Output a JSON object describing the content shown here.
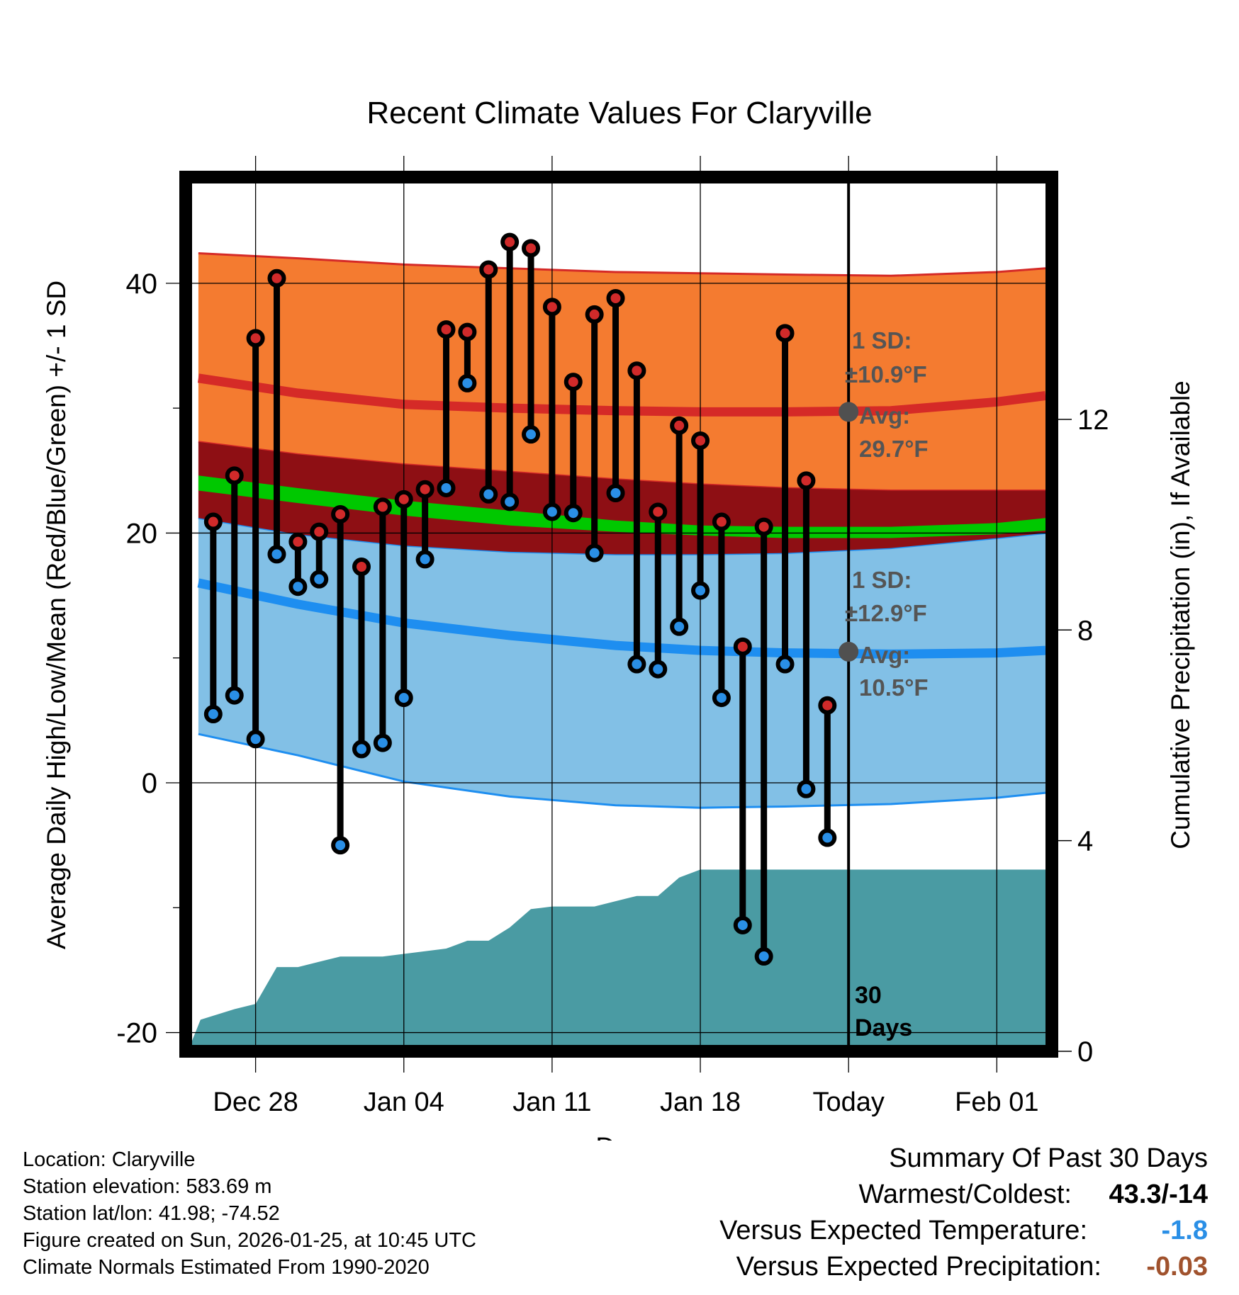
{
  "title": "Recent Climate Values For Claryville",
  "colors": {
    "high_band": "#f47b30",
    "high_line": "#d52a27",
    "mean_band": "#8e0f14",
    "mean_line": "#00c800",
    "low_band": "#82c0e6",
    "low_line": "#1e8ef0",
    "precip": "#4a9ba3",
    "high_dot": "#d02a2a",
    "low_dot": "#2a8fe6",
    "avg_marker": "#505050",
    "annot_text": "#555555",
    "summary_temp": "#2a8fe6",
    "summary_precip": "#a0522d"
  },
  "chart_data": {
    "type": "line",
    "xlabel": "Day",
    "ylabel": "Average Daily High/Low/Mean (Red/Blue/Green) +/- 1 SD",
    "y2label": "Cumulative Precipitation (in), If Available",
    "xlim": [
      -3.3,
      37.6
    ],
    "ylim": [
      -21.5,
      48.5
    ],
    "y_ticks": [
      -20,
      0,
      20,
      40
    ],
    "y_tick_labels": [
      "-20",
      "0",
      "20",
      "40"
    ],
    "y_minor_ticks": [
      -10,
      10,
      30
    ],
    "y2lim": [
      0,
      16.6
    ],
    "y2_ticks": [
      0,
      4,
      8,
      12
    ],
    "y2_tick_labels": [
      "0",
      "4",
      "8",
      "12"
    ],
    "x_ticks": [
      0,
      7,
      14,
      21,
      28,
      35
    ],
    "x_tick_labels": [
      "Dec 28",
      "Jan 04",
      "Jan 11",
      "Jan 18",
      "Today",
      "Feb 01"
    ],
    "today_index": 28,
    "normals": {
      "x": [
        -2.7,
        2,
        7,
        12,
        17,
        21,
        25,
        30,
        35,
        37.3
      ],
      "high_upper": [
        42.4,
        42.0,
        41.5,
        41.2,
        40.9,
        40.8,
        40.7,
        40.6,
        40.9,
        41.2
      ],
      "high_mean": [
        32.4,
        31.2,
        30.3,
        30.0,
        29.8,
        29.7,
        29.7,
        29.8,
        30.5,
        31.0
      ],
      "high_lower": [
        27.3,
        26.3,
        25.5,
        24.9,
        24.3,
        23.9,
        23.6,
        23.4,
        23.4,
        23.4
      ],
      "mean_upper": [
        24.6,
        23.6,
        22.6,
        21.8,
        21.0,
        20.6,
        20.5,
        20.5,
        20.8,
        21.2
      ],
      "mean_lower": [
        23.4,
        22.4,
        21.4,
        20.6,
        20.1,
        19.8,
        19.6,
        19.6,
        19.9,
        20.2
      ],
      "low_upper": [
        21.2,
        19.9,
        19.0,
        18.5,
        18.3,
        18.3,
        18.4,
        18.8,
        19.6,
        20.0
      ],
      "low_mean": [
        16.0,
        14.3,
        12.8,
        11.8,
        11.0,
        10.6,
        10.4,
        10.3,
        10.4,
        10.6
      ],
      "low_lower": [
        3.9,
        2.2,
        0.1,
        -1.1,
        -1.8,
        -2.0,
        -1.9,
        -1.7,
        -1.2,
        -0.8
      ]
    },
    "series": [
      {
        "name": "Daily High",
        "x": [
          -2,
          -1,
          0,
          1,
          2,
          3,
          4,
          5,
          6,
          7,
          8,
          9,
          10,
          11,
          12,
          13,
          14,
          15,
          16,
          17,
          18,
          19,
          20,
          21,
          22,
          23,
          24,
          25,
          26,
          27
        ],
        "values": [
          20.9,
          24.6,
          35.6,
          40.4,
          19.3,
          20.1,
          21.5,
          17.3,
          22.1,
          22.7,
          23.5,
          36.3,
          36.1,
          41.1,
          43.3,
          42.8,
          38.1,
          32.1,
          37.5,
          38.8,
          33.0,
          21.7,
          28.6,
          27.4,
          20.9,
          10.9,
          20.5,
          36.0,
          24.2,
          6.2
        ]
      },
      {
        "name": "Daily Low",
        "x": [
          -2,
          -1,
          0,
          1,
          2,
          3,
          4,
          5,
          6,
          7,
          8,
          9,
          10,
          11,
          12,
          13,
          14,
          15,
          16,
          17,
          18,
          19,
          20,
          21,
          22,
          23,
          24,
          25,
          26,
          27
        ],
        "values": [
          5.5,
          7.0,
          3.5,
          18.3,
          15.7,
          16.3,
          -5.0,
          2.7,
          3.2,
          6.8,
          17.9,
          23.6,
          32.0,
          23.1,
          22.5,
          27.9,
          21.7,
          21.6,
          18.4,
          23.2,
          9.5,
          9.1,
          12.5,
          15.4,
          6.8,
          -11.4,
          -13.9,
          9.5,
          -0.5,
          -4.4
        ]
      },
      {
        "name": "Cumulative Precipitation",
        "axis": "right",
        "x": [
          -3.2,
          -2.6,
          -1,
          0,
          1,
          2,
          3,
          4,
          5,
          6,
          7,
          8,
          9,
          10,
          11,
          12,
          13,
          14,
          15,
          16,
          17,
          18,
          19,
          20,
          21,
          22,
          23,
          24,
          25,
          26,
          27,
          28,
          29,
          30,
          31,
          32,
          33,
          34,
          35,
          36,
          37.3
        ],
        "values": [
          0.0,
          0.6,
          0.8,
          0.9,
          1.6,
          1.6,
          1.7,
          1.8,
          1.8,
          1.8,
          1.85,
          1.9,
          1.95,
          2.1,
          2.1,
          2.35,
          2.7,
          2.75,
          2.75,
          2.75,
          2.85,
          2.95,
          2.95,
          3.3,
          3.45,
          3.45,
          3.45,
          3.45,
          3.45,
          3.45,
          3.45,
          3.45,
          3.45,
          3.45,
          3.45,
          3.45,
          3.45,
          3.45,
          3.45,
          3.45,
          3.45
        ]
      }
    ],
    "annotations": {
      "high": {
        "sd_label": "1 SD:",
        "sd_value": "±10.9°F",
        "avg_label": "Avg:",
        "avg_value": "29.7°F",
        "marker_value": 29.7
      },
      "low": {
        "sd_label": "1 SD:",
        "sd_value": "±12.9°F",
        "avg_label": "Avg:",
        "avg_value": "10.5°F",
        "marker_value": 10.5
      },
      "period_number": "30",
      "period_unit": "Days"
    }
  },
  "footer": {
    "location": "Location: Claryville",
    "elevation": "Station elevation: 583.69 m",
    "latlon": "Station lat/lon: 41.98; -74.52",
    "created": "Figure created on Sun, 2026-01-25, at 10:45 UTC",
    "normals": "Climate Normals Estimated From 1990-2020"
  },
  "summary": {
    "heading": "Summary Of Past 30 Days",
    "warmest_label": "Warmest/Coldest:",
    "warmest_value": "43.3/-14",
    "temp_label": "Versus Expected Temperature:",
    "temp_value": "-1.8",
    "precip_label": "Versus Expected Precipitation:",
    "precip_value": "-0.03"
  }
}
